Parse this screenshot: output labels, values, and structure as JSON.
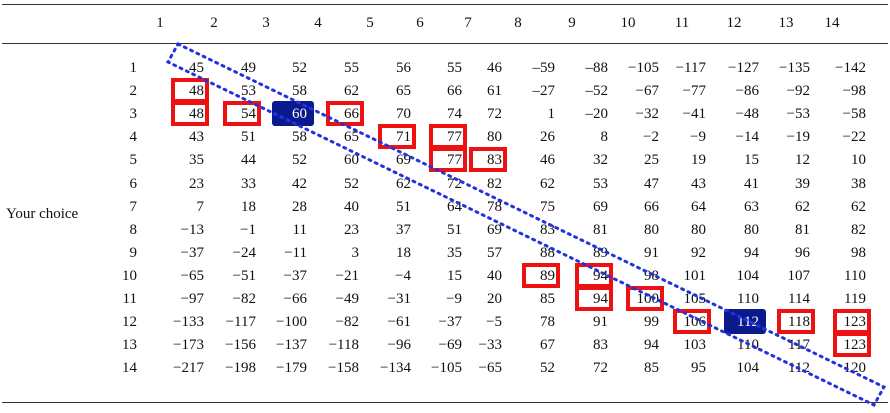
{
  "table": {
    "row_title": "Your choice",
    "columns": [
      "1",
      "2",
      "3",
      "4",
      "5",
      "6",
      "7",
      "8",
      "9",
      "10",
      "11",
      "12",
      "13",
      "14"
    ],
    "rows": [
      {
        "label": "1",
        "cells": [
          "45",
          "49",
          "52",
          "55",
          "56",
          "55",
          "46",
          "–59",
          "–88",
          "−105",
          "−117",
          "−127",
          "−135",
          "−142"
        ]
      },
      {
        "label": "2",
        "cells": [
          "48",
          "53",
          "58",
          "62",
          "65",
          "66",
          "61",
          "–27",
          "–52",
          "−67",
          "−77",
          "−86",
          "−92",
          "−98"
        ]
      },
      {
        "label": "3",
        "cells": [
          "48",
          "54",
          "60",
          "66",
          "70",
          "74",
          "72",
          "1",
          "–20",
          "−32",
          "−41",
          "−48",
          "−53",
          "−58"
        ]
      },
      {
        "label": "4",
        "cells": [
          "43",
          "51",
          "58",
          "65",
          "71",
          "77",
          "80",
          "26",
          "8",
          "−2",
          "−9",
          "−14",
          "−19",
          "−22"
        ]
      },
      {
        "label": "5",
        "cells": [
          "35",
          "44",
          "52",
          "60",
          "69",
          "77",
          "83",
          "46",
          "32",
          "25",
          "19",
          "15",
          "12",
          "10"
        ]
      },
      {
        "label": "6",
        "cells": [
          "23",
          "33",
          "42",
          "52",
          "62",
          "72",
          "82",
          "62",
          "53",
          "47",
          "43",
          "41",
          "39",
          "38"
        ]
      },
      {
        "label": "7",
        "cells": [
          "7",
          "18",
          "28",
          "40",
          "51",
          "64",
          "78",
          "75",
          "69",
          "66",
          "64",
          "63",
          "62",
          "62"
        ]
      },
      {
        "label": "8",
        "cells": [
          "−13",
          "−1",
          "11",
          "23",
          "37",
          "51",
          "69",
          "83",
          "81",
          "80",
          "80",
          "80",
          "81",
          "82"
        ]
      },
      {
        "label": "9",
        "cells": [
          "−37",
          "−24",
          "−11",
          "3",
          "18",
          "35",
          "57",
          "88",
          "89",
          "91",
          "92",
          "94",
          "96",
          "98"
        ]
      },
      {
        "label": "10",
        "cells": [
          "−65",
          "−51",
          "−37",
          "−21",
          "−4",
          "15",
          "40",
          "89",
          "94",
          "98",
          "101",
          "104",
          "107",
          "110"
        ]
      },
      {
        "label": "11",
        "cells": [
          "−97",
          "−82",
          "−66",
          "−49",
          "−31",
          "−9",
          "20",
          "85",
          "94",
          "100",
          "105",
          "110",
          "114",
          "119"
        ]
      },
      {
        "label": "12",
        "cells": [
          "−133",
          "−117",
          "−100",
          "−82",
          "−61",
          "−37",
          "−5",
          "78",
          "91",
          "99",
          "106",
          "112",
          "118",
          "123"
        ]
      },
      {
        "label": "13",
        "cells": [
          "−173",
          "−156",
          "−137",
          "−118",
          "−96",
          "−69",
          "−33",
          "67",
          "83",
          "94",
          "103",
          "110",
          "117",
          "123"
        ]
      },
      {
        "label": "14",
        "cells": [
          "−217",
          "−198",
          "−179",
          "−158",
          "−134",
          "−105",
          "−65",
          "52",
          "72",
          "85",
          "95",
          "104",
          "112",
          "120"
        ]
      }
    ],
    "red_boxes": [
      [
        1,
        0
      ],
      [
        2,
        0
      ],
      [
        2,
        1
      ],
      [
        2,
        3
      ],
      [
        3,
        4
      ],
      [
        3,
        5
      ],
      [
        4,
        5
      ],
      [
        4,
        6
      ],
      [
        9,
        7
      ],
      [
        9,
        8
      ],
      [
        10,
        8
      ],
      [
        10,
        9
      ],
      [
        11,
        10
      ],
      [
        11,
        12
      ],
      [
        11,
        13
      ],
      [
        12,
        13
      ]
    ],
    "blue_boxes": [
      [
        2,
        2
      ],
      [
        11,
        11
      ]
    ],
    "colors": {
      "red": "#ee1111",
      "blue_fill": "#0a1a8c",
      "dotted_line": "#2233dd",
      "text": "#111111"
    }
  }
}
